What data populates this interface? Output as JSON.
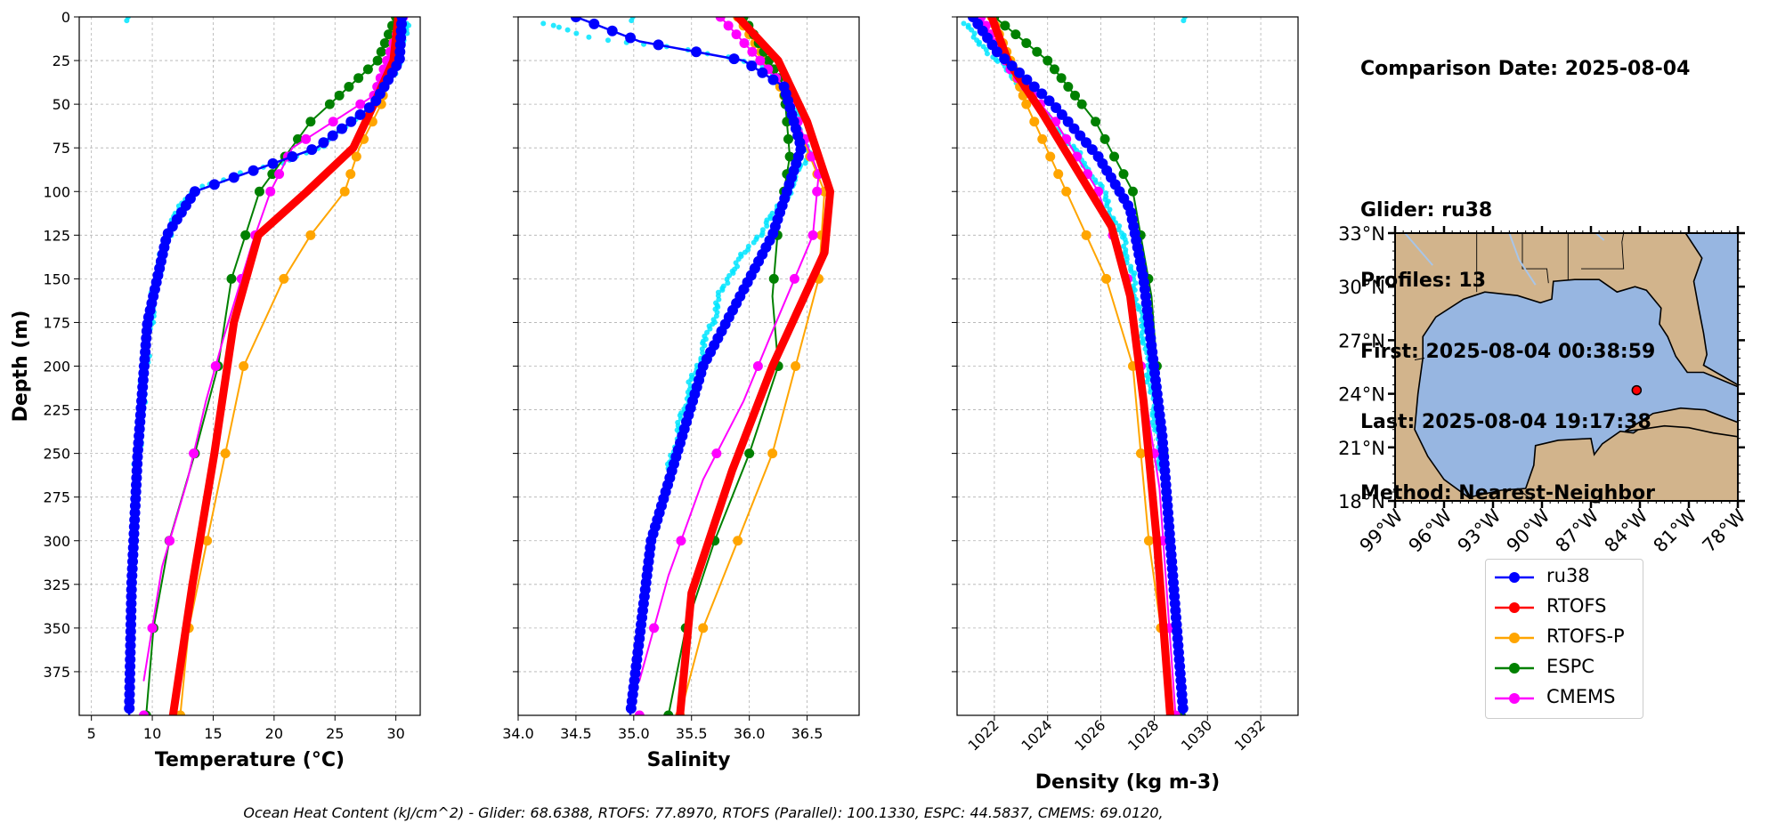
{
  "info": {
    "comparison_date": "Comparison Date: 2025-08-04",
    "glider": "Glider: ru38",
    "profiles": "Profiles: 13",
    "first": "First: 2025-08-04 00:38:59",
    "last": "Last: 2025-08-04 19:17:38",
    "method": "Method: Nearest-Neighbor"
  },
  "footer": "Ocean Heat Content (kJ/cm^2) - Glider: 68.6388,  RTOFS: 77.8970,  RTOFS (Parallel): 100.1330,  ESPC: 44.5837,  CMEMS: 69.0120,",
  "legend": [
    {
      "label": "ru38",
      "color": "#0000ff"
    },
    {
      "label": "RTOFS",
      "color": "#ff0000"
    },
    {
      "label": "RTOFS-P",
      "color": "#ffa500"
    },
    {
      "label": "ESPC",
      "color": "#008000"
    },
    {
      "label": "CMEMS",
      "color": "#ff00ff"
    }
  ],
  "map": {
    "lat_ticks": [
      "33°N",
      "30°N",
      "27°N",
      "24°N",
      "21°N",
      "18°N"
    ],
    "lon_ticks": [
      "99°W",
      "96°W",
      "93°W",
      "90°W",
      "87°W",
      "84°W",
      "81°W",
      "78°W"
    ],
    "lon_range": [
      -99,
      -78
    ],
    "lat_range": [
      18,
      33
    ],
    "land_color": "#d2b48c",
    "ocean_color": "#97b6e1",
    "glider_position": {
      "lon": -84.2,
      "lat": 24.2
    }
  },
  "chart_data": [
    {
      "type": "line",
      "xlabel": "Temperature (°C)",
      "ylabel": "Depth (m)",
      "xlim": [
        4,
        32
      ],
      "ylim": [
        400,
        0
      ],
      "xticks": [
        5,
        10,
        15,
        20,
        25,
        30
      ],
      "yticks": [
        0,
        25,
        50,
        75,
        100,
        125,
        150,
        175,
        200,
        225,
        250,
        275,
        300,
        325,
        350,
        375
      ],
      "grid": true,
      "series": [
        {
          "name": "ru38",
          "points": [
            [
              30.5,
              0
            ],
            [
              30.3,
              25
            ],
            [
              28.2,
              50
            ],
            [
              23.5,
              75
            ],
            [
              13.5,
              100
            ],
            [
              11.2,
              125
            ],
            [
              9.6,
              175
            ],
            [
              8.8,
              250
            ],
            [
              8.3,
              325
            ],
            [
              8.1,
              400
            ]
          ]
        },
        {
          "name": "RTOFS",
          "points": [
            [
              30.2,
              0
            ],
            [
              29.8,
              25
            ],
            [
              28.2,
              50
            ],
            [
              26.5,
              75
            ],
            [
              22.7,
              100
            ],
            [
              18.7,
              125
            ],
            [
              16.7,
              175
            ],
            [
              15.1,
              250
            ],
            [
              13.3,
              325
            ],
            [
              11.7,
              400
            ]
          ]
        },
        {
          "name": "RTOFS-P",
          "points": [
            [
              30.0,
              0
            ],
            [
              29.5,
              25
            ],
            [
              28.8,
              50
            ],
            [
              27.0,
              75
            ],
            [
              25.8,
              100
            ],
            [
              23.0,
              125
            ],
            [
              20.8,
              150
            ],
            [
              17.5,
              200
            ],
            [
              16.0,
              250
            ],
            [
              14.5,
              300
            ],
            [
              13.0,
              350
            ],
            [
              12.3,
              400
            ]
          ]
        },
        {
          "name": "ESPC",
          "points": [
            [
              30.0,
              0
            ],
            [
              28.5,
              25
            ],
            [
              23.0,
              60
            ],
            [
              18.8,
              100
            ],
            [
              16.5,
              150
            ],
            [
              15.4,
              200
            ],
            [
              13.5,
              250
            ],
            [
              11.4,
              300
            ],
            [
              10.1,
              350
            ],
            [
              9.5,
              400
            ]
          ]
        },
        {
          "name": "CMEMS",
          "points": [
            [
              30.6,
              0
            ],
            [
              28.2,
              45
            ],
            [
              21.5,
              75
            ],
            [
              19.7,
              100
            ],
            [
              18.2,
              130
            ],
            [
              15.8,
              185
            ],
            [
              14.4,
              220
            ],
            [
              12.9,
              265
            ],
            [
              10.8,
              315
            ],
            [
              9.3,
              380
            ]
          ]
        }
      ],
      "observations": [
        [
          30.8,
          3
        ],
        [
          30.7,
          12
        ],
        [
          30.3,
          25
        ],
        [
          29.5,
          35
        ],
        [
          28.0,
          50
        ],
        [
          26.2,
          62
        ],
        [
          23.6,
          75
        ],
        [
          20.0,
          85
        ],
        [
          16.2,
          92
        ],
        [
          13.0,
          100
        ],
        [
          11.5,
          120
        ],
        [
          10.3,
          150
        ],
        [
          9.4,
          200
        ],
        [
          8.7,
          260
        ],
        [
          8.2,
          320
        ],
        [
          7.9,
          390
        ]
      ]
    },
    {
      "type": "line",
      "xlabel": "Salinity",
      "ylabel": "",
      "xlim": [
        34.0,
        36.95
      ],
      "ylim": [
        400,
        0
      ],
      "xticks": [
        34.0,
        34.5,
        35.0,
        35.5,
        36.0,
        36.5
      ],
      "grid": true,
      "series": [
        {
          "name": "ru38",
          "points": [
            [
              34.5,
              0
            ],
            [
              35.05,
              14
            ],
            [
              35.95,
              25
            ],
            [
              36.3,
              40
            ],
            [
              36.45,
              75
            ],
            [
              36.2,
              125
            ],
            [
              35.6,
              200
            ],
            [
              35.15,
              300
            ],
            [
              34.97,
              400
            ]
          ]
        },
        {
          "name": "RTOFS",
          "points": [
            [
              35.9,
              0
            ],
            [
              36.25,
              25
            ],
            [
              36.5,
              60
            ],
            [
              36.7,
              100
            ],
            [
              36.65,
              135
            ],
            [
              36.2,
              200
            ],
            [
              35.85,
              260
            ],
            [
              35.5,
              330
            ],
            [
              35.4,
              400
            ]
          ]
        },
        {
          "name": "RTOFS-P",
          "points": [
            [
              35.9,
              0
            ],
            [
              36.2,
              30
            ],
            [
              36.4,
              60
            ],
            [
              36.65,
              100
            ],
            [
              36.6,
              150
            ],
            [
              36.4,
              200
            ],
            [
              36.2,
              250
            ],
            [
              35.9,
              300
            ],
            [
              35.6,
              350
            ],
            [
              35.4,
              400
            ]
          ]
        },
        {
          "name": "ESPC",
          "points": [
            [
              35.95,
              0
            ],
            [
              36.3,
              40
            ],
            [
              36.35,
              80
            ],
            [
              36.25,
              120
            ],
            [
              36.2,
              160
            ],
            [
              36.25,
              200
            ],
            [
              36.0,
              250
            ],
            [
              35.7,
              300
            ],
            [
              35.45,
              350
            ],
            [
              35.3,
              400
            ]
          ]
        },
        {
          "name": "CMEMS",
          "points": [
            [
              35.75,
              0
            ],
            [
              36.3,
              40
            ],
            [
              36.6,
              90
            ],
            [
              36.55,
              125
            ],
            [
              36.2,
              180
            ],
            [
              35.95,
              220
            ],
            [
              35.6,
              265
            ],
            [
              35.3,
              320
            ],
            [
              35.05,
              380
            ]
          ]
        }
      ],
      "observations": [
        [
          34.2,
          3
        ],
        [
          34.5,
          10
        ],
        [
          35.0,
          15
        ],
        [
          35.8,
          22
        ],
        [
          36.15,
          30
        ],
        [
          36.4,
          50
        ],
        [
          36.5,
          80
        ],
        [
          36.3,
          105
        ],
        [
          35.8,
          150
        ],
        [
          35.45,
          220
        ],
        [
          35.2,
          290
        ],
        [
          35.05,
          350
        ],
        [
          34.98,
          400
        ]
      ]
    },
    {
      "type": "line",
      "xlabel": "Density (kg m-3)",
      "ylabel": "",
      "xlim": [
        1020.6,
        1033.4
      ],
      "ylim": [
        400,
        0
      ],
      "xticks": [
        1022,
        1024,
        1026,
        1028,
        1030,
        1032
      ],
      "grid": true,
      "series": [
        {
          "name": "ru38",
          "points": [
            [
              1021.2,
              0
            ],
            [
              1022.1,
              20
            ],
            [
              1024.2,
              50
            ],
            [
              1025.9,
              80
            ],
            [
              1027.1,
              110
            ],
            [
              1027.6,
              150
            ],
            [
              1028.3,
              240
            ],
            [
              1028.8,
              340
            ],
            [
              1029.1,
              400
            ]
          ]
        },
        {
          "name": "RTOFS",
          "points": [
            [
              1021.9,
              0
            ],
            [
              1022.5,
              25
            ],
            [
              1023.8,
              55
            ],
            [
              1025.2,
              90
            ],
            [
              1026.4,
              120
            ],
            [
              1027.1,
              160
            ],
            [
              1027.6,
              220
            ],
            [
              1028.1,
              300
            ],
            [
              1028.6,
              400
            ]
          ]
        },
        {
          "name": "RTOFS-P",
          "points": [
            [
              1021.9,
              0
            ],
            [
              1022.6,
              25
            ],
            [
              1023.2,
              50
            ],
            [
              1024.1,
              80
            ],
            [
              1025.0,
              110
            ],
            [
              1026.2,
              150
            ],
            [
              1027.2,
              200
            ],
            [
              1027.8,
              300
            ],
            [
              1028.7,
              400
            ]
          ]
        },
        {
          "name": "ESPC",
          "points": [
            [
              1022.0,
              0
            ],
            [
              1024.0,
              25
            ],
            [
              1025.8,
              60
            ],
            [
              1027.2,
              100
            ],
            [
              1027.9,
              160
            ],
            [
              1028.5,
              280
            ],
            [
              1029.0,
              400
            ]
          ]
        },
        {
          "name": "CMEMS",
          "points": [
            [
              1021.5,
              0
            ],
            [
              1022.6,
              30
            ],
            [
              1024.3,
              60
            ],
            [
              1025.9,
              100
            ],
            [
              1027.0,
              150
            ],
            [
              1028.2,
              270
            ],
            [
              1028.8,
              400
            ]
          ]
        }
      ],
      "observations": [
        [
          1020.8,
          3
        ],
        [
          1021.3,
          12
        ],
        [
          1022.1,
          25
        ],
        [
          1023.3,
          45
        ],
        [
          1024.7,
          70
        ],
        [
          1025.9,
          95
        ],
        [
          1026.9,
          130
        ],
        [
          1027.6,
          180
        ],
        [
          1028.2,
          250
        ],
        [
          1028.7,
          330
        ],
        [
          1029.1,
          400
        ]
      ]
    }
  ]
}
